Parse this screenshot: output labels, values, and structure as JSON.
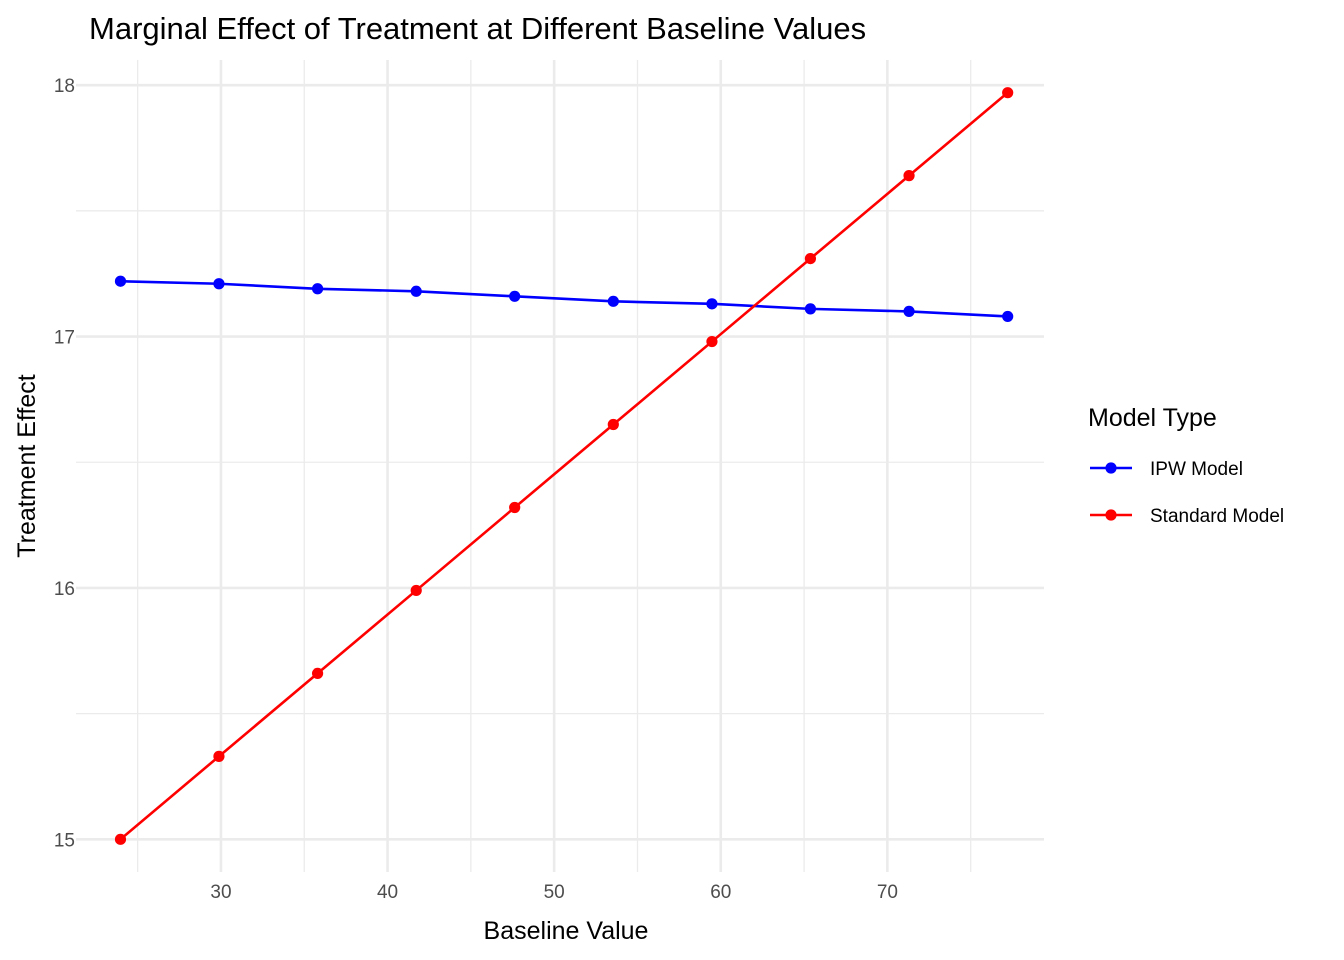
{
  "chart_data": {
    "type": "line",
    "title": "Marginal Effect of Treatment at Different Baseline Values",
    "xlabel": "Baseline Value",
    "ylabel": "Treatment Effect",
    "xlim": [
      21.3,
      79.4
    ],
    "ylim": [
      14.87,
      18.1
    ],
    "x_ticks": [
      30,
      40,
      50,
      60,
      70
    ],
    "x_minor_ticks": [
      25,
      35,
      45,
      55,
      65,
      75
    ],
    "y_ticks": [
      15,
      16,
      17,
      18
    ],
    "y_minor_ticks": [
      15.5,
      16.5,
      17.5
    ],
    "grid": true,
    "legend": {
      "title": "Model Type",
      "placement": "right"
    },
    "x": [
      23.97,
      29.88,
      35.8,
      41.72,
      47.63,
      53.55,
      59.47,
      65.38,
      71.3,
      77.22
    ],
    "series": [
      {
        "name": "IPW Model",
        "color": "#0000ff",
        "values": [
          17.22,
          17.21,
          17.19,
          17.18,
          17.16,
          17.14,
          17.13,
          17.11,
          17.1,
          17.08
        ]
      },
      {
        "name": "Standard Model",
        "color": "#ff0000",
        "values": [
          15.0,
          15.33,
          15.66,
          15.99,
          16.32,
          16.65,
          16.98,
          17.31,
          17.64,
          17.97
        ]
      }
    ]
  }
}
